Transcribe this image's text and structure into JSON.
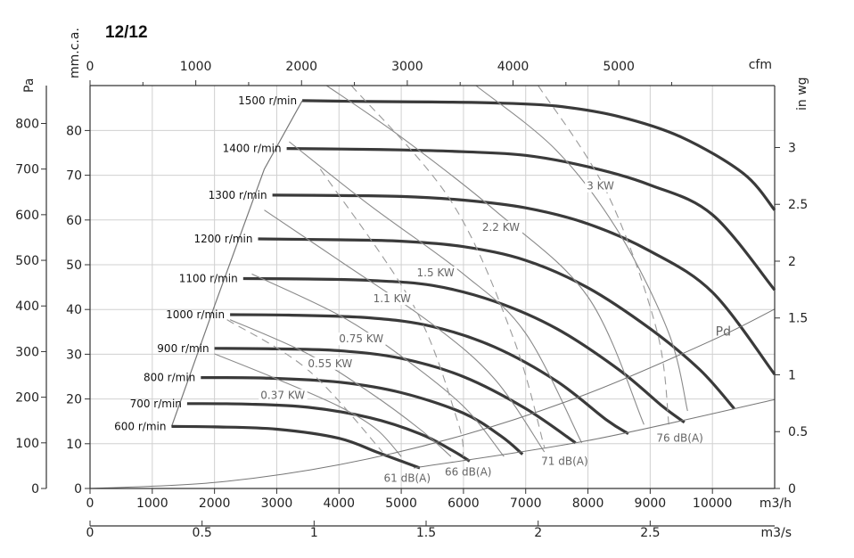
{
  "chart_data": {
    "type": "line",
    "title": "12/12",
    "x_axes": {
      "flow_m3h": {
        "unit": "m3/h",
        "ticks": [
          0,
          1000,
          2000,
          3000,
          4000,
          5000,
          6000,
          7000,
          8000,
          9000,
          10000
        ],
        "range": [
          0,
          11000
        ]
      },
      "flow_m3s": {
        "unit": "m3/s",
        "ticks": [
          "0",
          "0.5",
          "1",
          "1.5",
          "2",
          "2.5"
        ],
        "range": [
          0,
          3.0556
        ]
      },
      "flow_cfm": {
        "unit": "cfm",
        "ticks": [
          0,
          1000,
          2000,
          3000,
          4000,
          5000
        ],
        "range": [
          0,
          6474
        ]
      }
    },
    "y_axes": {
      "pressure_pa": {
        "unit": "Pa",
        "ticks": [
          0,
          100,
          200,
          300,
          400,
          500,
          600,
          700,
          800
        ],
        "range": [
          0,
          883
        ]
      },
      "pressure_mmca": {
        "unit": "mm.c.a.",
        "ticks": [
          0,
          10,
          20,
          30,
          40,
          50,
          60,
          70,
          80
        ],
        "range": [
          0,
          90
        ]
      },
      "pressure_inwg": {
        "unit": "in wg",
        "ticks": [
          "0",
          "0.5",
          "1",
          "1.5",
          "2",
          "2.5",
          "3"
        ],
        "range": [
          0,
          3.546
        ]
      }
    },
    "grid": true,
    "series": [
      {
        "name": "600 r/min",
        "kind": "speed",
        "points": [
          [
            1310,
            136
          ],
          [
            2000,
            135
          ],
          [
            3000,
            130
          ],
          [
            4000,
            110
          ],
          [
            4600,
            80
          ],
          [
            5000,
            60
          ],
          [
            5300,
            45
          ]
        ]
      },
      {
        "name": "700 r/min",
        "kind": "speed",
        "points": [
          [
            1560,
            186
          ],
          [
            2500,
            185
          ],
          [
            3500,
            178
          ],
          [
            4500,
            155
          ],
          [
            5300,
            120
          ],
          [
            5800,
            85
          ],
          [
            6100,
            60
          ]
        ]
      },
      {
        "name": "800 r/min",
        "kind": "speed",
        "points": [
          [
            1780,
            243
          ],
          [
            2800,
            242
          ],
          [
            4000,
            233
          ],
          [
            5000,
            210
          ],
          [
            6000,
            165
          ],
          [
            6600,
            115
          ],
          [
            6950,
            75
          ]
        ]
      },
      {
        "name": "900 r/min",
        "kind": "speed",
        "points": [
          [
            2000,
            307
          ],
          [
            3000,
            306
          ],
          [
            4000,
            302
          ],
          [
            5000,
            285
          ],
          [
            6000,
            245
          ],
          [
            7000,
            175
          ],
          [
            7800,
            100
          ]
        ]
      },
      {
        "name": "1000 r/min",
        "kind": "speed",
        "points": [
          [
            2250,
            381
          ],
          [
            3200,
            380
          ],
          [
            4500,
            374
          ],
          [
            5500,
            355
          ],
          [
            6500,
            310
          ],
          [
            7500,
            235
          ],
          [
            8300,
            150
          ],
          [
            8650,
            120
          ]
        ]
      },
      {
        "name": "1100 r/min",
        "kind": "speed",
        "points": [
          [
            2460,
            460
          ],
          [
            3500,
            459
          ],
          [
            4500,
            456
          ],
          [
            5500,
            445
          ],
          [
            6500,
            410
          ],
          [
            7500,
            350
          ],
          [
            8500,
            260
          ],
          [
            9200,
            180
          ],
          [
            9550,
            145
          ]
        ]
      },
      {
        "name": "1200 r/min",
        "kind": "speed",
        "points": [
          [
            2700,
            547
          ],
          [
            4000,
            545
          ],
          [
            5000,
            542
          ],
          [
            6000,
            530
          ],
          [
            7000,
            500
          ],
          [
            8000,
            440
          ],
          [
            9000,
            350
          ],
          [
            9800,
            260
          ],
          [
            10350,
            175
          ]
        ]
      },
      {
        "name": "1300 r/min",
        "kind": "speed",
        "points": [
          [
            2930,
            643
          ],
          [
            4000,
            642
          ],
          [
            5000,
            640
          ],
          [
            6000,
            632
          ],
          [
            7000,
            615
          ],
          [
            8000,
            580
          ],
          [
            9000,
            520
          ],
          [
            10000,
            430
          ],
          [
            11000,
            250
          ]
        ]
      },
      {
        "name": "1400 r/min",
        "kind": "speed",
        "points": [
          [
            3160,
            745
          ],
          [
            4000,
            744
          ],
          [
            5000,
            742
          ],
          [
            6000,
            738
          ],
          [
            7000,
            730
          ],
          [
            8000,
            705
          ],
          [
            9000,
            665
          ],
          [
            10000,
            600
          ],
          [
            11000,
            435
          ]
        ]
      },
      {
        "name": "1500 r/min",
        "kind": "speed",
        "points": [
          [
            3410,
            850
          ],
          [
            4500,
            848
          ],
          [
            5500,
            847
          ],
          [
            6500,
            845
          ],
          [
            7500,
            838
          ],
          [
            8500,
            815
          ],
          [
            9500,
            770
          ],
          [
            10500,
            690
          ],
          [
            11000,
            610
          ]
        ]
      },
      {
        "name": "0.37 KW",
        "kind": "power",
        "points": [
          [
            2000,
            295
          ],
          [
            3000,
            240
          ],
          [
            4000,
            180
          ],
          [
            4600,
            130
          ],
          [
            5000,
            70
          ]
        ]
      },
      {
        "name": "0.55 KW",
        "kind": "power",
        "points": [
          [
            2250,
            370
          ],
          [
            3500,
            295
          ],
          [
            4500,
            210
          ],
          [
            5300,
            130
          ],
          [
            5800,
            70
          ]
        ]
      },
      {
        "name": "0.75 KW",
        "kind": "power",
        "points": [
          [
            2600,
            470
          ],
          [
            4000,
            380
          ],
          [
            5000,
            290
          ],
          [
            6000,
            180
          ],
          [
            6650,
            70
          ]
        ]
      },
      {
        "name": "1.1 KW",
        "kind": "power",
        "points": [
          [
            2800,
            610
          ],
          [
            4000,
            500
          ],
          [
            5500,
            360
          ],
          [
            6500,
            240
          ],
          [
            7300,
            80
          ]
        ]
      },
      {
        "name": "1.5 KW",
        "kind": "power",
        "points": [
          [
            3200,
            760
          ],
          [
            4500,
            620
          ],
          [
            6000,
            470
          ],
          [
            7000,
            340
          ],
          [
            7900,
            100
          ]
        ]
      },
      {
        "name": "2.2 KW",
        "kind": "power",
        "points": [
          [
            3800,
            883
          ],
          [
            5000,
            770
          ],
          [
            6500,
            610
          ],
          [
            8000,
            420
          ],
          [
            8900,
            140
          ]
        ]
      },
      {
        "name": "3 KW",
        "kind": "power",
        "points": [
          [
            6200,
            883
          ],
          [
            7500,
            740
          ],
          [
            8500,
            560
          ],
          [
            9300,
            340
          ],
          [
            9600,
            170
          ]
        ]
      },
      {
        "name": "61 dB(A)",
        "kind": "noise",
        "points": [
          [
            2200,
            370
          ],
          [
            3500,
            260
          ],
          [
            4700,
            80
          ]
        ]
      },
      {
        "name": "66 dB(A)",
        "kind": "noise",
        "points": [
          [
            3700,
            700
          ],
          [
            5200,
            400
          ],
          [
            5900,
            150
          ],
          [
            6000,
            70
          ]
        ]
      },
      {
        "name": "71 dB(A)",
        "kind": "noise",
        "points": [
          [
            4200,
            883
          ],
          [
            5800,
            630
          ],
          [
            6800,
            330
          ],
          [
            7300,
            90
          ]
        ]
      },
      {
        "name": "76 dB(A)",
        "kind": "noise",
        "points": [
          [
            7200,
            883
          ],
          [
            8300,
            650
          ],
          [
            9100,
            350
          ],
          [
            9300,
            140
          ]
        ]
      },
      {
        "name": "Pd",
        "kind": "dynamic-pressure",
        "points": [
          [
            0,
            0
          ],
          [
            2000,
            13
          ],
          [
            4000,
            52
          ],
          [
            6000,
            117
          ],
          [
            8000,
            208
          ],
          [
            10000,
            325
          ],
          [
            11000,
            393
          ]
        ]
      },
      {
        "name": "",
        "kind": "system-curve",
        "points": [
          [
            5200,
            45
          ],
          [
            8000,
            105
          ],
          [
            11000,
            195
          ]
        ]
      }
    ],
    "envelope": [
      [
        1310,
        136
      ],
      [
        2000,
        400
      ],
      [
        2800,
        700
      ],
      [
        3410,
        850
      ]
    ],
    "labels": {
      "rpm": [
        "600 r/min",
        "700 r/min",
        "800 r/min",
        "900 r/min",
        "1000 r/min",
        "1100 r/min",
        "1200 r/min",
        "1300 r/min",
        "1400 r/min",
        "1500 r/min"
      ],
      "kw": [
        "0.37 KW",
        "0.55 KW",
        "0.75 KW",
        "1.1 KW",
        "1.5 KW",
        "2.2 KW",
        "3 KW"
      ],
      "db": [
        "61 dB(A)",
        "66 dB(A)",
        "71 dB(A)",
        "76 dB(A)"
      ],
      "pd": "Pd"
    },
    "colors": {
      "speed": "#3a3a3a",
      "power": "#8a8a8a",
      "noise": "#9a9a9a",
      "grid": "#d0d0d0",
      "frame": "#333333"
    }
  }
}
